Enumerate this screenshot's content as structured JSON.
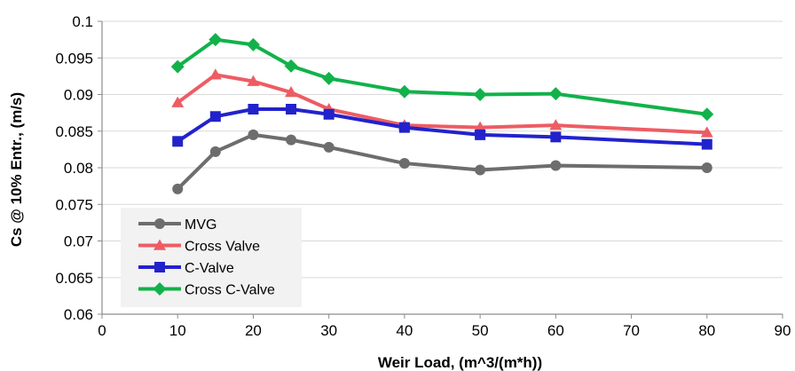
{
  "chart_data": {
    "type": "line",
    "title": "",
    "xlabel": "Weir Load, (m^3/(m*h))",
    "ylabel": "Cs @ 10% Entr., (m/s)",
    "xlim": [
      0,
      90
    ],
    "ylim": [
      0.06,
      0.1
    ],
    "xticks": [
      0,
      10,
      20,
      30,
      40,
      50,
      60,
      70,
      80,
      90
    ],
    "xtick_labels": [
      "0",
      "10",
      "20",
      "30",
      "40",
      "50",
      "60",
      "70",
      "80",
      "90"
    ],
    "yticks": [
      0.06,
      0.065,
      0.07,
      0.075,
      0.08,
      0.085,
      0.09,
      0.095,
      0.1
    ],
    "ytick_labels": [
      "0.06",
      "0.065",
      "0.07",
      "0.075",
      "0.08",
      "0.085",
      "0.09",
      "0.095",
      "0.1"
    ],
    "grid": "horizontal",
    "legend_position": "bottom-left",
    "x": [
      10,
      15,
      20,
      25,
      30,
      40,
      50,
      60,
      80
    ],
    "series": [
      {
        "name": "MVG",
        "color": "#6d6d6d",
        "marker": "circle",
        "values": [
          0.0771,
          0.0822,
          0.0845,
          0.0838,
          0.0828,
          0.0806,
          0.0797,
          0.0803,
          0.08
        ]
      },
      {
        "name": "Cross Valve",
        "color": "#ee5c63",
        "marker": "triangle",
        "values": [
          0.0889,
          0.0927,
          0.0918,
          0.0903,
          0.088,
          0.0858,
          0.0855,
          0.0858,
          0.0848
        ]
      },
      {
        "name": "C-Valve",
        "color": "#2222cc",
        "marker": "square",
        "values": [
          0.0836,
          0.087,
          0.088,
          0.088,
          0.0873,
          0.0855,
          0.0845,
          0.0842,
          0.0832
        ]
      },
      {
        "name": "Cross C-Valve",
        "color": "#11b24a",
        "marker": "diamond",
        "values": [
          0.0938,
          0.0975,
          0.0968,
          0.0939,
          0.0922,
          0.0904,
          0.09,
          0.0901,
          0.0873
        ]
      }
    ]
  }
}
